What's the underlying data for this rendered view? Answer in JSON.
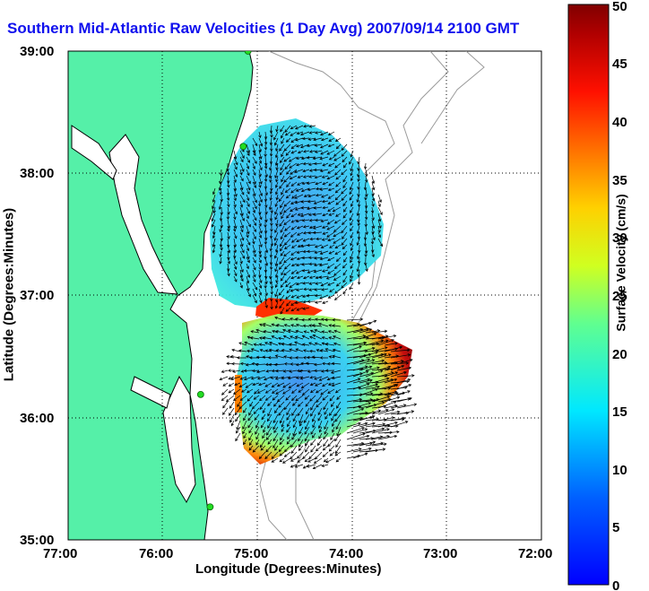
{
  "title": "Southern Mid-Atlantic Raw Velocities (1 Day Avg) 2007/09/14 2100 GMT",
  "x_axis": {
    "label": "Longitude (Degrees:Minutes)",
    "ticks": [
      "77:00",
      "76:00",
      "75:00",
      "74:00",
      "73:00",
      "72:00"
    ]
  },
  "y_axis": {
    "label": "Latitude (Degrees:Minutes)",
    "ticks": [
      "39:00",
      "38:00",
      "37:00",
      "36:00",
      "35:00"
    ]
  },
  "colorbar": {
    "label": "Surface Velocity (cm/s)",
    "ticks": [
      "50",
      "45",
      "40",
      "35",
      "30",
      "25",
      "20",
      "15",
      "10",
      "5",
      "0"
    ],
    "min": 0,
    "max": 50
  },
  "colors": {
    "land": "#55f0a8",
    "coast": "#000000",
    "bathymetry": "#9a9a9a",
    "title": "#1010ee",
    "station": "#22dd22"
  },
  "map_extent": {
    "lon": [
      -77,
      -72
    ],
    "lat": [
      35,
      39
    ]
  },
  "stations": [
    {
      "lon": -75.1,
      "lat": 39.0
    },
    {
      "lon": -75.15,
      "lat": 38.22
    },
    {
      "lon": -75.6,
      "lat": 36.19
    },
    {
      "lon": -75.5,
      "lat": 35.27
    }
  ],
  "velocity_zones": [
    {
      "region": "north",
      "speed": 10,
      "lon": -74.85,
      "lat": 37.55
    },
    {
      "region": "south",
      "speed": 8,
      "lon": -74.95,
      "lat": 36.3
    },
    {
      "region": "southeast",
      "speed": 48,
      "lon": -74.1,
      "lat": 36.35
    },
    {
      "region": "mouth",
      "speed": 40,
      "lon": -75.0,
      "lat": 36.96
    }
  ]
}
